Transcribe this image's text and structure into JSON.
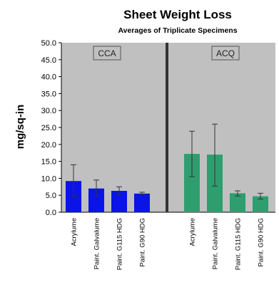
{
  "chart_data": {
    "type": "bar",
    "title": "Sheet Weight Loss",
    "subtitle": "Averages of Triplicate Specimens",
    "ylabel": "mg/sq-in",
    "ylim": [
      0,
      50
    ],
    "yticks": [
      "0.0",
      "5.0",
      "10.0",
      "15.0",
      "20.0",
      "25.0",
      "30.0",
      "35.0",
      "40.0",
      "45.0",
      "50.0"
    ],
    "grid": false,
    "groups": [
      {
        "name": "CCA",
        "color": "#0a14e6",
        "categories": [
          "Acrylume",
          "Paint. Galvalume",
          "Paint. G115 HDG",
          "Paint. G90 HDG"
        ],
        "values": [
          9.2,
          7.0,
          6.3,
          5.5
        ],
        "error_low": [
          4.7,
          4.8,
          5.1,
          5.2
        ],
        "error_high": [
          14.0,
          9.5,
          7.5,
          5.9
        ]
      },
      {
        "name": "ACQ",
        "color": "#2e9e6e",
        "categories": [
          "Acrylume",
          "Paint. Galvalume",
          "Paint. G115 HDG",
          "Paint. G90 HDG"
        ],
        "values": [
          17.2,
          17.0,
          5.6,
          4.7
        ],
        "error_low": [
          10.5,
          7.7,
          4.8,
          3.9
        ],
        "error_high": [
          23.9,
          26.0,
          6.3,
          5.6
        ]
      }
    ]
  },
  "colors": {
    "plot_background": "#c0c0c0",
    "divider": "#333333",
    "error_bar": "#333333"
  }
}
